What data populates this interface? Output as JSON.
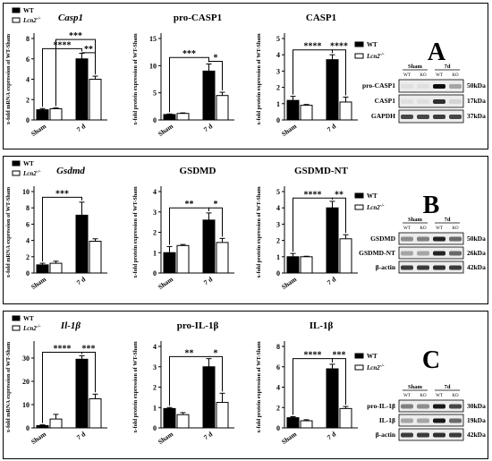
{
  "panels": [
    {
      "letter": "A",
      "legend": {
        "wt": "WT",
        "ko": "Lcn2",
        "ko_sup": "-/-"
      },
      "blot": {
        "group_labels": [
          "Sham",
          "7d"
        ],
        "lane_labels": [
          "WT",
          "KO",
          "WT",
          "KO"
        ],
        "rows": [
          {
            "label": "pro-CASP1",
            "kda": "50kDa",
            "bands": [
              0.05,
              0.05,
              0.95,
              0.3
            ]
          },
          {
            "label": "CASP1",
            "kda": "17kDa",
            "bands": [
              0.05,
              0.05,
              0.8,
              0.1
            ]
          },
          {
            "label": "GAPDH",
            "kda": "37kDa",
            "bands": [
              0.7,
              0.7,
              0.75,
              0.7
            ]
          }
        ]
      }
    },
    {
      "letter": "B",
      "legend": {
        "wt": "WT",
        "ko": "Lcn2",
        "ko_sup": "-/-"
      },
      "blot": {
        "group_labels": [
          "Sham",
          "7d"
        ],
        "lane_labels": [
          "WT",
          "KO",
          "WT",
          "KO"
        ],
        "rows": [
          {
            "label": "GSDMD",
            "kda": "50kDa",
            "bands": [
              0.4,
              0.45,
              0.85,
              0.55
            ]
          },
          {
            "label": "GSDMD-NT",
            "kda": "26kDa",
            "bands": [
              0.3,
              0.3,
              0.85,
              0.55
            ]
          },
          {
            "label": "β-actin",
            "kda": "42kDa",
            "bands": [
              0.75,
              0.75,
              0.8,
              0.75
            ]
          }
        ]
      }
    },
    {
      "letter": "C",
      "legend": {
        "wt": "WT",
        "ko": "Lcn2",
        "ko_sup": "-/-"
      },
      "blot": {
        "group_labels": [
          "Sham",
          "7d"
        ],
        "lane_labels": [
          "WT",
          "KO",
          "WT",
          "KO"
        ],
        "rows": [
          {
            "label": "pro-IL-1β",
            "kda": "30kDa",
            "bands": [
              0.45,
              0.4,
              0.9,
              0.7
            ]
          },
          {
            "label": "IL-1β",
            "kda": "19kDa",
            "bands": [
              0.3,
              0.3,
              0.9,
              0.55
            ]
          },
          {
            "label": "β-actin",
            "kda": "42kDa",
            "bands": [
              0.75,
              0.75,
              0.8,
              0.75
            ]
          }
        ]
      }
    }
  ],
  "chart_data": [
    {
      "type": "bar",
      "panel": "A",
      "title": "Casp1",
      "title_italic": true,
      "ylabel": "x-fold mRNA expression of WT-Sham",
      "ylim": [
        0,
        8
      ],
      "yticks": [
        0,
        2,
        4,
        6,
        8
      ],
      "categories": [
        "Sham",
        "7 d"
      ],
      "series": [
        {
          "name": "WT",
          "values": [
            1.0,
            6.0
          ],
          "errors": [
            0.12,
            0.55
          ]
        },
        {
          "name": "Lcn2-/-",
          "values": [
            1.1,
            4.0
          ],
          "errors": [
            0.08,
            0.3
          ]
        }
      ],
      "annotations": [
        {
          "text": "****",
          "from": [
            0,
            0
          ],
          "to": [
            1,
            0
          ],
          "y": 7.0
        },
        {
          "text": "**",
          "from": [
            1,
            0
          ],
          "to": [
            1,
            1
          ],
          "y": 6.6
        },
        {
          "text": "***",
          "from": [
            0,
            1
          ],
          "to": [
            1,
            1
          ],
          "y": 7.9
        }
      ]
    },
    {
      "type": "bar",
      "panel": "A",
      "title": "pro-CASP1",
      "ylabel": "x-fold protein expression of WT-Sham",
      "ylim": [
        0,
        15
      ],
      "yticks": [
        0,
        5,
        10,
        15
      ],
      "categories": [
        "Sham",
        "7 d"
      ],
      "series": [
        {
          "name": "WT",
          "values": [
            1.0,
            9.0
          ],
          "errors": [
            0.1,
            1.3
          ]
        },
        {
          "name": "Lcn2-/-",
          "values": [
            1.2,
            4.5
          ],
          "errors": [
            0.1,
            0.6
          ]
        }
      ],
      "annotations": [
        {
          "text": "***",
          "from": [
            0,
            0
          ],
          "to": [
            1,
            0
          ],
          "y": 11.5
        },
        {
          "text": "*",
          "from": [
            1,
            0
          ],
          "to": [
            1,
            1
          ],
          "y": 10.8
        }
      ]
    },
    {
      "type": "bar",
      "panel": "A",
      "title": "CASP1",
      "ylabel": "x-fold protein expression of WT-Sham",
      "ylim": [
        0,
        5
      ],
      "yticks": [
        0,
        1,
        2,
        3,
        4,
        5
      ],
      "categories": [
        "Sham",
        "7 d"
      ],
      "series": [
        {
          "name": "WT",
          "values": [
            1.2,
            3.7
          ],
          "errors": [
            0.25,
            0.3
          ]
        },
        {
          "name": "Lcn2-/-",
          "values": [
            0.9,
            1.1
          ],
          "errors": [
            0.05,
            0.3
          ]
        }
      ],
      "annotations": [
        {
          "text": "****",
          "from": [
            0,
            0
          ],
          "to": [
            1,
            0
          ],
          "y": 4.3
        },
        {
          "text": "****",
          "from": [
            1,
            0
          ],
          "to": [
            1,
            1
          ],
          "y": 4.3
        }
      ]
    },
    {
      "type": "bar",
      "panel": "B",
      "title": "Gsdmd",
      "title_italic": true,
      "ylabel": "x-fold mRNA expression of WT-Sham",
      "ylim": [
        0,
        10
      ],
      "yticks": [
        0,
        2,
        4,
        6,
        8,
        10
      ],
      "categories": [
        "Sham",
        "7 d"
      ],
      "series": [
        {
          "name": "WT",
          "values": [
            1.0,
            7.1
          ],
          "errors": [
            0.2,
            1.6
          ]
        },
        {
          "name": "Lcn2-/-",
          "values": [
            1.2,
            3.9
          ],
          "errors": [
            0.25,
            0.3
          ]
        }
      ],
      "annotations": [
        {
          "text": "***",
          "from": [
            0,
            0
          ],
          "to": [
            1,
            0
          ],
          "y": 9.3
        }
      ]
    },
    {
      "type": "bar",
      "panel": "B",
      "title": "GSDMD",
      "ylabel": "x-fold protein expression of WT-Sham",
      "ylim": [
        0,
        4
      ],
      "yticks": [
        0,
        1,
        2,
        3,
        4
      ],
      "categories": [
        "Sham",
        "7 d"
      ],
      "series": [
        {
          "name": "WT",
          "values": [
            1.0,
            2.6
          ],
          "errors": [
            0.3,
            0.35
          ]
        },
        {
          "name": "Lcn2-/-",
          "values": [
            1.35,
            1.5
          ],
          "errors": [
            0.05,
            0.2
          ]
        }
      ],
      "annotations": [
        {
          "text": "**",
          "from": [
            0,
            0
          ],
          "to": [
            1,
            0
          ],
          "y": 3.2
        },
        {
          "text": "*",
          "from": [
            1,
            0
          ],
          "to": [
            1,
            1
          ],
          "y": 3.2
        }
      ]
    },
    {
      "type": "bar",
      "panel": "B",
      "title": "GSDMD-NT",
      "ylabel": "x-fold protein expression of WT-Sham",
      "ylim": [
        0,
        5
      ],
      "yticks": [
        0,
        1,
        2,
        3,
        4,
        5
      ],
      "categories": [
        "Sham",
        "7 d"
      ],
      "series": [
        {
          "name": "WT",
          "values": [
            1.0,
            4.0
          ],
          "errors": [
            0.2,
            0.4
          ]
        },
        {
          "name": "Lcn2-/-",
          "values": [
            1.0,
            2.1
          ],
          "errors": [
            0.03,
            0.25
          ]
        }
      ],
      "annotations": [
        {
          "text": "****",
          "from": [
            0,
            0
          ],
          "to": [
            1,
            0
          ],
          "y": 4.6
        },
        {
          "text": "**",
          "from": [
            1,
            0
          ],
          "to": [
            1,
            1
          ],
          "y": 4.6
        }
      ]
    },
    {
      "type": "bar",
      "panel": "C",
      "title": "Il-1β",
      "title_italic": true,
      "ylabel": "x-fold mRNA expression of WT-Sham",
      "ylim": [
        0,
        35
      ],
      "yticks": [
        0,
        10,
        20,
        30
      ],
      "categories": [
        "Sham",
        "7 d"
      ],
      "series": [
        {
          "name": "WT",
          "values": [
            1.0,
            29.5
          ],
          "errors": [
            0.3,
            1.5
          ]
        },
        {
          "name": "Lcn2-/-",
          "values": [
            3.8,
            12.5
          ],
          "errors": [
            2.0,
            2.0
          ]
        }
      ],
      "annotations": [
        {
          "text": "****",
          "from": [
            0,
            0
          ],
          "to": [
            1,
            0
          ],
          "y": 32.5
        },
        {
          "text": "***",
          "from": [
            1,
            0
          ],
          "to": [
            1,
            1
          ],
          "y": 32.5
        }
      ]
    },
    {
      "type": "bar",
      "panel": "C",
      "title": "pro-IL-1β",
      "ylabel": "x-fold protein expression of WT-Sham",
      "ylim": [
        0,
        4
      ],
      "yticks": [
        0,
        1,
        2,
        3,
        4
      ],
      "categories": [
        "Sham",
        "7 d"
      ],
      "series": [
        {
          "name": "WT",
          "values": [
            0.95,
            3.0
          ],
          "errors": [
            0.05,
            0.4
          ]
        },
        {
          "name": "Lcn2-/-",
          "values": [
            0.65,
            1.25
          ],
          "errors": [
            0.1,
            0.45
          ]
        }
      ],
      "annotations": [
        {
          "text": "**",
          "from": [
            0,
            0
          ],
          "to": [
            1,
            0
          ],
          "y": 3.5
        },
        {
          "text": "*",
          "from": [
            1,
            0
          ],
          "to": [
            1,
            1
          ],
          "y": 3.5
        }
      ]
    },
    {
      "type": "bar",
      "panel": "C",
      "title": "IL-1β",
      "ylabel": "x-fold protein expression of WT-Sham",
      "ylim": [
        0,
        8
      ],
      "yticks": [
        0,
        2,
        4,
        6,
        8
      ],
      "categories": [
        "Sham",
        "7 d"
      ],
      "series": [
        {
          "name": "WT",
          "values": [
            1.0,
            5.8
          ],
          "errors": [
            0.1,
            0.45
          ]
        },
        {
          "name": "Lcn2-/-",
          "values": [
            0.7,
            1.9
          ],
          "errors": [
            0.1,
            0.2
          ]
        }
      ],
      "annotations": [
        {
          "text": "****",
          "from": [
            0,
            0
          ],
          "to": [
            1,
            0
          ],
          "y": 6.8
        },
        {
          "text": "***",
          "from": [
            1,
            0
          ],
          "to": [
            1,
            1
          ],
          "y": 6.8
        }
      ]
    }
  ]
}
